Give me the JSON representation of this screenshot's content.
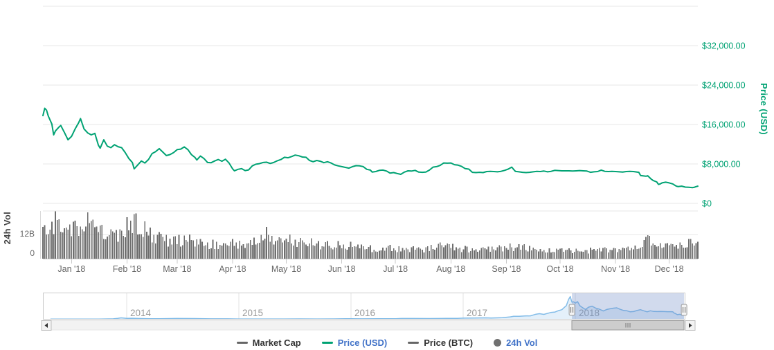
{
  "axes": {
    "price": {
      "title": "Price (USD)",
      "color": "#00A273"
    },
    "volume": {
      "title": "24h Vol",
      "color": "#424242"
    }
  },
  "legend": {
    "items": [
      {
        "label": "Market Cap",
        "marker": "dash",
        "marker_color": "#666666",
        "label_color": "#333333"
      },
      {
        "label": "Price (USD)",
        "marker": "dash",
        "marker_color": "#00A273",
        "label_color": "#4273C8"
      },
      {
        "label": "Price (BTC)",
        "marker": "dash",
        "marker_color": "#666666",
        "label_color": "#333333"
      },
      {
        "label": "24h Vol",
        "marker": "circle",
        "marker_color": "#707070",
        "label_color": "#4273C8"
      }
    ]
  },
  "chart_data": [
    {
      "type": "line",
      "name": "Price (USD)",
      "color": "#00A273",
      "ylabel": "Price (USD)",
      "ylim": [
        0,
        40000
      ],
      "grid_values": [
        0,
        8000,
        16000,
        24000,
        32000,
        40000
      ],
      "yticks": [
        {
          "value": 0,
          "label": "$0"
        },
        {
          "value": 8000,
          "label": "$8,000.00"
        },
        {
          "value": 16000,
          "label": "$16,000.00"
        },
        {
          "value": 24000,
          "label": "$24,000.00"
        },
        {
          "value": 32000,
          "label": "$32,000.00"
        }
      ],
      "x_unit": "days since 2017-12-16",
      "x_range": [
        0,
        366
      ],
      "xticks": [
        {
          "day": 16,
          "label": "Jan '18"
        },
        {
          "day": 47,
          "label": "Feb '18"
        },
        {
          "day": 75,
          "label": "Mar '18"
        },
        {
          "day": 106,
          "label": "Apr '18"
        },
        {
          "day": 136,
          "label": "May '18"
        },
        {
          "day": 167,
          "label": "Jun '18"
        },
        {
          "day": 197,
          "label": "Jul '18"
        },
        {
          "day": 228,
          "label": "Aug '18"
        },
        {
          "day": 259,
          "label": "Sep '18"
        },
        {
          "day": 289,
          "label": "Oct '18"
        },
        {
          "day": 320,
          "label": "Nov '18"
        },
        {
          "day": 350,
          "label": "Dec '18"
        }
      ],
      "points": [
        [
          0,
          17800
        ],
        [
          1,
          19300
        ],
        [
          2,
          18900
        ],
        [
          3,
          17700
        ],
        [
          5,
          16100
        ],
        [
          6,
          13900
        ],
        [
          7,
          14700
        ],
        [
          9,
          15500
        ],
        [
          10,
          15800
        ],
        [
          12,
          14400
        ],
        [
          14,
          12900
        ],
        [
          16,
          13600
        ],
        [
          18,
          15100
        ],
        [
          20,
          16400
        ],
        [
          21,
          17200
        ],
        [
          23,
          15100
        ],
        [
          25,
          14300
        ],
        [
          27,
          13900
        ],
        [
          29,
          14200
        ],
        [
          31,
          11800
        ],
        [
          32,
          11200
        ],
        [
          34,
          12900
        ],
        [
          36,
          11600
        ],
        [
          38,
          11300
        ],
        [
          40,
          11900
        ],
        [
          42,
          11500
        ],
        [
          44,
          11300
        ],
        [
          46,
          10300
        ],
        [
          48,
          9100
        ],
        [
          50,
          8300
        ],
        [
          51,
          7000
        ],
        [
          53,
          7800
        ],
        [
          55,
          8600
        ],
        [
          57,
          8200
        ],
        [
          59,
          8900
        ],
        [
          61,
          10100
        ],
        [
          63,
          10500
        ],
        [
          65,
          11100
        ],
        [
          67,
          10400
        ],
        [
          69,
          9700
        ],
        [
          71,
          9900
        ],
        [
          73,
          10300
        ],
        [
          75,
          10900
        ],
        [
          77,
          11000
        ],
        [
          79,
          11450
        ],
        [
          81,
          10900
        ],
        [
          83,
          9900
        ],
        [
          85,
          9300
        ],
        [
          86,
          8800
        ],
        [
          88,
          9600
        ],
        [
          90,
          9100
        ],
        [
          92,
          8300
        ],
        [
          94,
          8250
        ],
        [
          96,
          8600
        ],
        [
          98,
          8900
        ],
        [
          100,
          8550
        ],
        [
          102,
          8950
        ],
        [
          104,
          8200
        ],
        [
          106,
          7000
        ],
        [
          107,
          6600
        ],
        [
          109,
          6900
        ],
        [
          111,
          7050
        ],
        [
          113,
          6650
        ],
        [
          115,
          6800
        ],
        [
          117,
          7600
        ],
        [
          119,
          7950
        ],
        [
          121,
          8050
        ],
        [
          123,
          8300
        ],
        [
          125,
          8350
        ],
        [
          127,
          8100
        ],
        [
          129,
          8300
        ],
        [
          131,
          8650
        ],
        [
          133,
          8900
        ],
        [
          135,
          9350
        ],
        [
          137,
          9250
        ],
        [
          139,
          9500
        ],
        [
          141,
          9800
        ],
        [
          143,
          9650
        ],
        [
          145,
          9400
        ],
        [
          147,
          9350
        ],
        [
          149,
          8700
        ],
        [
          151,
          8450
        ],
        [
          153,
          8700
        ],
        [
          155,
          8550
        ],
        [
          157,
          8250
        ],
        [
          159,
          8450
        ],
        [
          161,
          8200
        ],
        [
          163,
          7800
        ],
        [
          165,
          7600
        ],
        [
          167,
          7450
        ],
        [
          169,
          7300
        ],
        [
          171,
          7150
        ],
        [
          173,
          7450
        ],
        [
          175,
          7650
        ],
        [
          177,
          7600
        ],
        [
          179,
          7450
        ],
        [
          181,
          6900
        ],
        [
          183,
          6750
        ],
        [
          184,
          6350
        ],
        [
          186,
          6450
        ],
        [
          188,
          6700
        ],
        [
          190,
          6750
        ],
        [
          192,
          6550
        ],
        [
          194,
          6150
        ],
        [
          196,
          6250
        ],
        [
          198,
          6050
        ],
        [
          200,
          5900
        ],
        [
          202,
          6350
        ],
        [
          204,
          6600
        ],
        [
          206,
          6550
        ],
        [
          208,
          6700
        ],
        [
          210,
          6350
        ],
        [
          212,
          6300
        ],
        [
          214,
          6350
        ],
        [
          216,
          6750
        ],
        [
          218,
          7350
        ],
        [
          220,
          7450
        ],
        [
          222,
          7700
        ],
        [
          224,
          8200
        ],
        [
          226,
          8150
        ],
        [
          228,
          8200
        ],
        [
          230,
          7850
        ],
        [
          232,
          7750
        ],
        [
          234,
          7500
        ],
        [
          236,
          7050
        ],
        [
          238,
          6950
        ],
        [
          240,
          6300
        ],
        [
          242,
          6250
        ],
        [
          244,
          6300
        ],
        [
          246,
          6250
        ],
        [
          248,
          6450
        ],
        [
          250,
          6500
        ],
        [
          252,
          6450
        ],
        [
          254,
          6400
        ],
        [
          256,
          6500
        ],
        [
          258,
          6700
        ],
        [
          260,
          6950
        ],
        [
          262,
          7350
        ],
        [
          263,
          6900
        ],
        [
          264,
          6500
        ],
        [
          266,
          6400
        ],
        [
          268,
          6300
        ],
        [
          270,
          6250
        ],
        [
          272,
          6300
        ],
        [
          274,
          6400
        ],
        [
          276,
          6500
        ],
        [
          278,
          6450
        ],
        [
          280,
          6550
        ],
        [
          282,
          6400
        ],
        [
          284,
          6500
        ],
        [
          286,
          6700
        ],
        [
          288,
          6650
        ],
        [
          290,
          6600
        ],
        [
          292,
          6600
        ],
        [
          294,
          6600
        ],
        [
          296,
          6550
        ],
        [
          298,
          6600
        ],
        [
          300,
          6650
        ],
        [
          302,
          6600
        ],
        [
          304,
          6550
        ],
        [
          306,
          6300
        ],
        [
          308,
          6400
        ],
        [
          310,
          6450
        ],
        [
          312,
          6750
        ],
        [
          314,
          6500
        ],
        [
          316,
          6450
        ],
        [
          318,
          6500
        ],
        [
          320,
          6450
        ],
        [
          322,
          6400
        ],
        [
          324,
          6350
        ],
        [
          326,
          6450
        ],
        [
          328,
          6500
        ],
        [
          330,
          6450
        ],
        [
          332,
          6350
        ],
        [
          333,
          6300
        ],
        [
          334,
          5650
        ],
        [
          335,
          5600
        ],
        [
          337,
          5500
        ],
        [
          338,
          5600
        ],
        [
          340,
          4900
        ],
        [
          341,
          4650
        ],
        [
          343,
          4350
        ],
        [
          344,
          3850
        ],
        [
          345,
          3950
        ],
        [
          346,
          4150
        ],
        [
          348,
          4300
        ],
        [
          350,
          4150
        ],
        [
          352,
          3950
        ],
        [
          353,
          3700
        ],
        [
          354,
          3500
        ],
        [
          355,
          3400
        ],
        [
          357,
          3500
        ],
        [
          359,
          3300
        ],
        [
          361,
          3250
        ],
        [
          363,
          3200
        ],
        [
          364,
          3250
        ],
        [
          365,
          3400
        ],
        [
          366,
          3500
        ]
      ]
    },
    {
      "type": "bar",
      "name": "24h Vol",
      "color": "#6E6E6E",
      "ylabel": "24h Vol",
      "unit": "billions USD",
      "ylim": [
        0,
        24
      ],
      "grid_values": [
        0,
        12,
        24
      ],
      "yticks": [
        {
          "value": 0,
          "label": "0"
        },
        {
          "value": 12,
          "label": "12B"
        }
      ],
      "weekly_values_billions": [
        15,
        18,
        14,
        19,
        17,
        12.5,
        11,
        19.5,
        14.5,
        12,
        9.8,
        9.4,
        9,
        7.6,
        7,
        7.4,
        7.8,
        9,
        12.5,
        9.8,
        9.4,
        8.8,
        7.4,
        6.8,
        6.4,
        6.4,
        5.4,
        5.4,
        5.3,
        4.9,
        4.7,
        5.4,
        6.4,
        5.4,
        4.7,
        4.4,
        4.9,
        5.6,
        6.3,
        4.9,
        4.4,
        4.2,
        4.4,
        4.1,
        4.2,
        4.4,
        4.2,
        5.2,
        8.8,
        9.3,
        7,
        6.6,
        8,
        7
      ]
    },
    {
      "type": "area",
      "name": "Navigator price history",
      "color": "#82BCE8",
      "ylim": [
        0,
        20
      ],
      "x_unit": "year",
      "xticks": [
        {
          "year": 2014,
          "label": "2014"
        },
        {
          "year": 2015,
          "label": "2015"
        },
        {
          "year": 2016,
          "label": "2016"
        },
        {
          "year": 2017,
          "label": "2017"
        },
        {
          "year": 2018,
          "label": "2018"
        }
      ],
      "selected_range_years": [
        2017.97,
        2018.97
      ],
      "points": [
        [
          2013.32,
          0.12
        ],
        [
          2013.5,
          0.09
        ],
        [
          2013.75,
          0.12
        ],
        [
          2013.88,
          0.35
        ],
        [
          2013.92,
          0.75
        ],
        [
          2013.95,
          1.15
        ],
        [
          2014.0,
          0.77
        ],
        [
          2014.05,
          0.85
        ],
        [
          2014.1,
          0.62
        ],
        [
          2014.2,
          0.45
        ],
        [
          2014.3,
          0.45
        ],
        [
          2014.45,
          0.65
        ],
        [
          2014.6,
          0.58
        ],
        [
          2014.75,
          0.38
        ],
        [
          2014.9,
          0.35
        ],
        [
          2015.0,
          0.25
        ],
        [
          2015.04,
          0.21
        ],
        [
          2015.1,
          0.24
        ],
        [
          2015.25,
          0.24
        ],
        [
          2015.4,
          0.24
        ],
        [
          2015.55,
          0.27
        ],
        [
          2015.7,
          0.23
        ],
        [
          2015.85,
          0.31
        ],
        [
          2015.95,
          0.42
        ],
        [
          2016.0,
          0.43
        ],
        [
          2016.1,
          0.38
        ],
        [
          2016.25,
          0.42
        ],
        [
          2016.4,
          0.45
        ],
        [
          2016.45,
          0.67
        ],
        [
          2016.55,
          0.66
        ],
        [
          2016.7,
          0.61
        ],
        [
          2016.85,
          0.71
        ],
        [
          2016.95,
          0.79
        ],
        [
          2017.0,
          0.96
        ],
        [
          2017.1,
          1.05
        ],
        [
          2017.2,
          1.19
        ],
        [
          2017.25,
          1.08
        ],
        [
          2017.35,
          1.35
        ],
        [
          2017.42,
          2.0
        ],
        [
          2017.45,
          2.5
        ],
        [
          2017.5,
          2.55
        ],
        [
          2017.55,
          2.75
        ],
        [
          2017.6,
          2.9
        ],
        [
          2017.65,
          4.3
        ],
        [
          2017.68,
          4.7
        ],
        [
          2017.72,
          4.1
        ],
        [
          2017.78,
          5.7
        ],
        [
          2017.82,
          6.1
        ],
        [
          2017.85,
          7.3
        ],
        [
          2017.88,
          8.1
        ],
        [
          2017.9,
          9.9
        ],
        [
          2017.92,
          11.5
        ],
        [
          2017.94,
          16.8
        ],
        [
          2017.955,
          19.3
        ],
        [
          2017.97,
          14.5
        ],
        [
          2017.985,
          14.8
        ],
        [
          2018.0,
          13.7
        ],
        [
          2018.02,
          15.0
        ],
        [
          2018.04,
          11.5
        ],
        [
          2018.06,
          10.2
        ],
        [
          2018.09,
          8.3
        ],
        [
          2018.12,
          10.3
        ],
        [
          2018.15,
          11.1
        ],
        [
          2018.18,
          9.5
        ],
        [
          2018.21,
          8.7
        ],
        [
          2018.25,
          7.0
        ],
        [
          2018.28,
          8.3
        ],
        [
          2018.31,
          8.9
        ],
        [
          2018.34,
          9.4
        ],
        [
          2018.37,
          9.7
        ],
        [
          2018.4,
          8.4
        ],
        [
          2018.43,
          7.5
        ],
        [
          2018.46,
          7.2
        ],
        [
          2018.49,
          6.3
        ],
        [
          2018.52,
          6.5
        ],
        [
          2018.55,
          7.4
        ],
        [
          2018.58,
          8.1
        ],
        [
          2018.61,
          7.2
        ],
        [
          2018.64,
          6.3
        ],
        [
          2018.67,
          7.2
        ],
        [
          2018.7,
          6.6
        ],
        [
          2018.73,
          6.5
        ],
        [
          2018.76,
          6.6
        ],
        [
          2018.79,
          6.5
        ],
        [
          2018.82,
          6.4
        ],
        [
          2018.85,
          6.4
        ],
        [
          2018.87,
          6.35
        ],
        [
          2018.875,
          5.6
        ],
        [
          2018.89,
          4.9
        ],
        [
          2018.9,
          4.4
        ],
        [
          2018.91,
          3.9
        ],
        [
          2018.93,
          4.2
        ],
        [
          2018.95,
          3.5
        ],
        [
          2018.96,
          3.3
        ],
        [
          2018.97,
          3.5
        ]
      ]
    }
  ]
}
